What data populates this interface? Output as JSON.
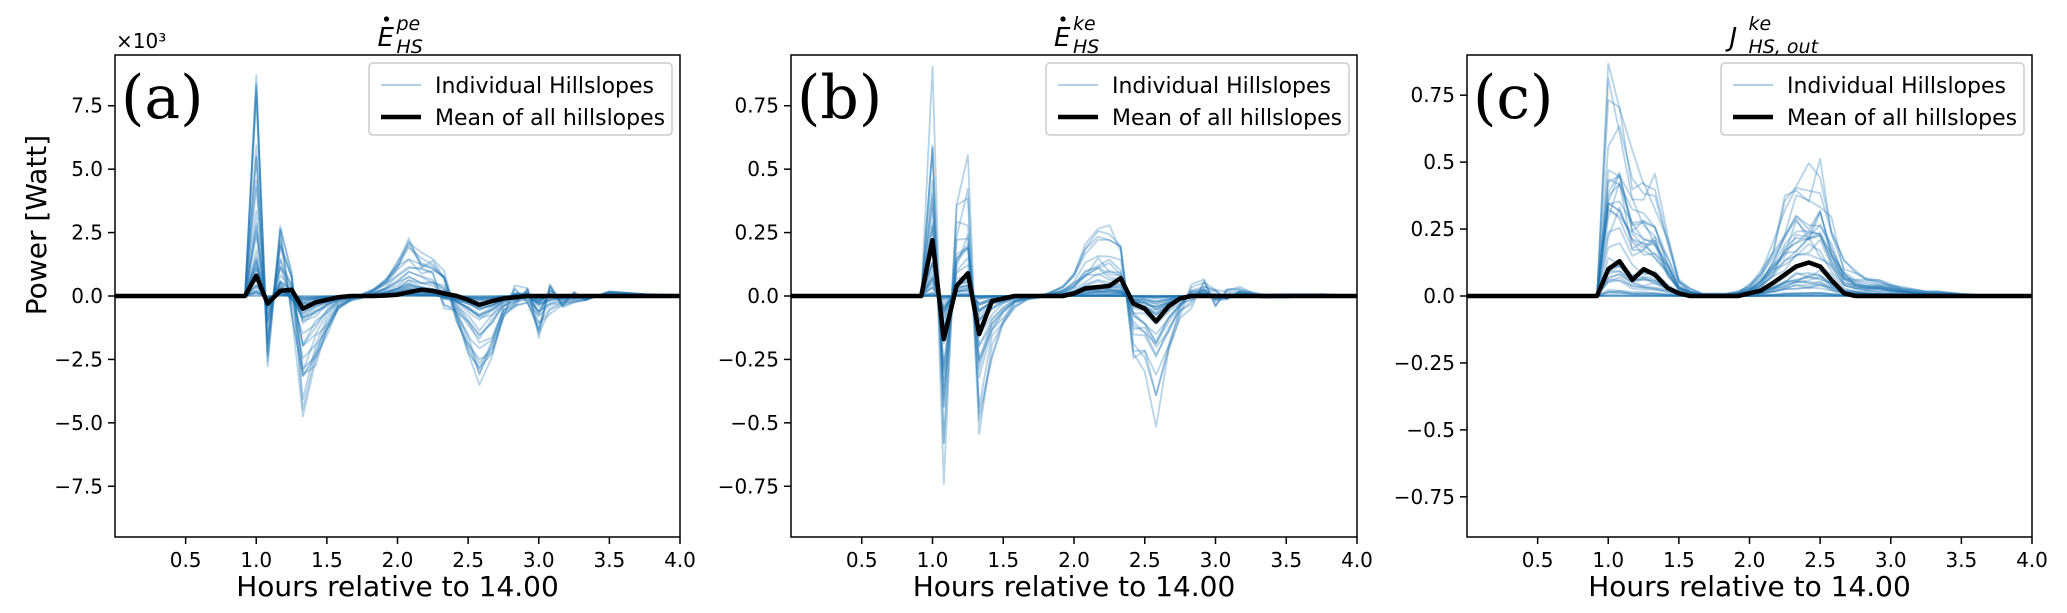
{
  "figure": {
    "ylabel": "Power [Watt]",
    "legend": {
      "individual_label": "Individual Hillslopes",
      "mean_label": "Mean of all hillslopes"
    },
    "colors": {
      "individual": "#1f77b4",
      "mean": "#000000",
      "axes": "#000000",
      "background": "#ffffff"
    }
  },
  "chart_data": [
    {
      "type": "line",
      "panel_label": "(a)",
      "title": "Ė",
      "title_sub": "HS",
      "title_sup": "pe",
      "xlabel": "Hours relative to 14.00",
      "ylabel": "Power [Watt]",
      "offset_text": "×10³",
      "xlim": [
        0.0,
        4.0
      ],
      "ylim": [
        -9.5,
        9.5
      ],
      "xticks": [
        0.5,
        1.0,
        1.5,
        2.0,
        2.5,
        3.0,
        3.5,
        4.0
      ],
      "yticks": [
        -7.5,
        -5.0,
        -2.5,
        0.0,
        2.5,
        5.0,
        7.5
      ],
      "legend_position": "top-right",
      "grid": false,
      "series": [
        {
          "name": "Mean of all hillslopes",
          "x": [
            0.0,
            0.25,
            0.5,
            0.75,
            0.92,
            1.0,
            1.08,
            1.17,
            1.25,
            1.33,
            1.42,
            1.5,
            1.58,
            1.67,
            1.75,
            1.83,
            1.92,
            2.0,
            2.08,
            2.17,
            2.25,
            2.33,
            2.42,
            2.5,
            2.58,
            2.67,
            2.75,
            2.83,
            2.92,
            3.0,
            3.17,
            3.33,
            3.5,
            3.75,
            4.0
          ],
          "y": [
            0,
            0,
            0,
            0,
            0,
            0.8,
            -0.3,
            0.2,
            0.25,
            -0.5,
            -0.25,
            -0.15,
            -0.05,
            0,
            0,
            0,
            0.02,
            0.05,
            0.15,
            0.25,
            0.2,
            0.1,
            0,
            -0.15,
            -0.35,
            -0.2,
            -0.1,
            -0.05,
            0,
            0,
            0,
            0,
            0,
            0,
            0
          ]
        }
      ],
      "individual": {
        "count_shown": 40,
        "envelope_x": [
          0.92,
          1.0,
          1.08,
          1.17,
          1.25,
          1.33,
          1.42,
          1.5,
          1.58,
          1.67,
          1.75,
          1.83,
          1.92,
          2.0,
          2.08,
          2.17,
          2.25,
          2.33,
          2.42,
          2.5,
          2.58,
          2.67,
          2.75,
          2.83,
          2.92,
          3.0,
          3.08,
          3.17,
          3.25,
          3.33,
          3.5,
          3.75,
          4.0
        ],
        "envelope_max": [
          0,
          9.5,
          0.5,
          3.2,
          1.2,
          0.3,
          0.2,
          0.1,
          0.05,
          0.05,
          0.1,
          0.3,
          0.8,
          1.5,
          2.5,
          1.8,
          1.5,
          1.1,
          0.3,
          0.3,
          0.2,
          0.2,
          0.1,
          0.5,
          0.4,
          0.7,
          0.6,
          0.3,
          0.2,
          0.1,
          0.2,
          0.1,
          0.05
        ],
        "envelope_min": [
          0,
          -0.6,
          -2.8,
          -1.0,
          -0.8,
          -5.0,
          -3.2,
          -1.8,
          -0.6,
          -0.2,
          -0.1,
          -0.05,
          -0.1,
          -0.1,
          -0.1,
          -0.2,
          -0.4,
          -0.8,
          -1.2,
          -2.5,
          -4.2,
          -2.8,
          -1.0,
          -0.5,
          -0.4,
          -1.8,
          -0.8,
          -0.5,
          -0.3,
          -0.2,
          -0.1,
          -0.05,
          -0.05
        ]
      }
    },
    {
      "type": "line",
      "panel_label": "(b)",
      "title": "Ė",
      "title_sub": "HS",
      "title_sup": "ke",
      "xlabel": "Hours relative to 14.00",
      "ylabel": "",
      "offset_text": "",
      "xlim": [
        0.0,
        4.0
      ],
      "ylim": [
        -0.95,
        0.95
      ],
      "xticks": [
        0.5,
        1.0,
        1.5,
        2.0,
        2.5,
        3.0,
        3.5,
        4.0
      ],
      "yticks": [
        -0.75,
        -0.5,
        -0.25,
        0.0,
        0.25,
        0.5,
        0.75
      ],
      "legend_position": "top-right",
      "grid": false,
      "series": [
        {
          "name": "Mean of all hillslopes",
          "x": [
            0.0,
            0.25,
            0.5,
            0.75,
            0.92,
            1.0,
            1.08,
            1.17,
            1.25,
            1.33,
            1.42,
            1.5,
            1.58,
            1.67,
            1.75,
            1.83,
            1.92,
            2.0,
            2.08,
            2.17,
            2.25,
            2.33,
            2.42,
            2.5,
            2.58,
            2.67,
            2.75,
            2.83,
            2.92,
            3.0,
            3.17,
            3.33,
            3.5,
            3.75,
            4.0
          ],
          "y": [
            0,
            0,
            0,
            0,
            0,
            0.22,
            -0.17,
            0.04,
            0.09,
            -0.15,
            -0.02,
            -0.01,
            0,
            0,
            0,
            0,
            0,
            0.01,
            0.03,
            0.035,
            0.04,
            0.07,
            -0.03,
            -0.05,
            -0.1,
            -0.04,
            -0.01,
            0,
            0,
            0,
            0,
            0,
            0,
            0,
            0
          ]
        }
      ],
      "individual": {
        "count_shown": 40,
        "envelope_x": [
          0.92,
          1.0,
          1.08,
          1.17,
          1.25,
          1.33,
          1.42,
          1.5,
          1.58,
          1.67,
          1.75,
          1.83,
          1.92,
          2.0,
          2.08,
          2.17,
          2.25,
          2.33,
          2.42,
          2.5,
          2.58,
          2.67,
          2.75,
          2.83,
          2.92,
          3.0,
          3.08,
          3.17,
          3.25,
          3.33,
          3.5,
          3.75,
          4.0
        ],
        "envelope_max": [
          0,
          0.95,
          0.3,
          0.4,
          0.56,
          0.2,
          0.1,
          0.05,
          0.02,
          0.01,
          0.01,
          0.02,
          0.05,
          0.12,
          0.25,
          0.33,
          0.3,
          0.26,
          0.1,
          0.08,
          0.04,
          0.02,
          0.02,
          0.05,
          0.08,
          0.05,
          0.03,
          0.04,
          0.02,
          0.01,
          0.01,
          0.01,
          0
        ],
        "envelope_min": [
          0,
          -0.08,
          -0.82,
          -0.25,
          -0.3,
          -0.68,
          -0.3,
          -0.15,
          -0.05,
          -0.02,
          -0.01,
          -0.01,
          -0.01,
          -0.01,
          -0.02,
          -0.02,
          -0.05,
          -0.1,
          -0.28,
          -0.35,
          -0.55,
          -0.3,
          -0.1,
          -0.05,
          -0.04,
          -0.05,
          -0.03,
          -0.02,
          -0.01,
          -0.01,
          -0.01,
          -0.01,
          0
        ]
      }
    },
    {
      "type": "line",
      "panel_label": "(c)",
      "title": "J",
      "title_sub": "HS, out",
      "title_sup": "ke",
      "xlabel": "Hours relative to 14.00",
      "ylabel": "",
      "offset_text": "",
      "xlim": [
        0.0,
        4.0
      ],
      "ylim": [
        -0.9,
        0.9
      ],
      "xticks": [
        0.5,
        1.0,
        1.5,
        2.0,
        2.5,
        3.0,
        3.5,
        4.0
      ],
      "yticks": [
        -0.75,
        -0.5,
        -0.25,
        0.0,
        0.25,
        0.5,
        0.75
      ],
      "legend_position": "top-right",
      "grid": false,
      "series": [
        {
          "name": "Mean of all hillslopes",
          "x": [
            0.0,
            0.25,
            0.5,
            0.75,
            0.92,
            1.0,
            1.08,
            1.17,
            1.25,
            1.33,
            1.42,
            1.5,
            1.58,
            1.67,
            1.75,
            1.83,
            1.92,
            2.0,
            2.08,
            2.17,
            2.25,
            2.33,
            2.42,
            2.5,
            2.58,
            2.67,
            2.75,
            2.83,
            2.92,
            3.0,
            3.17,
            3.33,
            3.5,
            3.75,
            4.0
          ],
          "y": [
            0,
            0,
            0,
            0,
            0,
            0.1,
            0.13,
            0.06,
            0.1,
            0.08,
            0.03,
            0.01,
            0,
            0,
            0,
            0,
            0,
            0.01,
            0.02,
            0.05,
            0.08,
            0.11,
            0.125,
            0.11,
            0.06,
            0.01,
            0,
            0,
            0,
            0,
            0,
            0,
            0,
            0,
            0
          ]
        }
      ],
      "individual": {
        "count_shown": 40,
        "envelope_x": [
          0.92,
          1.0,
          1.08,
          1.17,
          1.25,
          1.33,
          1.42,
          1.5,
          1.58,
          1.67,
          1.75,
          1.83,
          1.92,
          2.0,
          2.08,
          2.17,
          2.25,
          2.33,
          2.42,
          2.5,
          2.58,
          2.67,
          2.75,
          2.83,
          2.92,
          3.0,
          3.08,
          3.17,
          3.25,
          3.33,
          3.5,
          3.75,
          4.0
        ],
        "envelope_max": [
          0,
          0.88,
          0.9,
          0.55,
          0.52,
          0.47,
          0.25,
          0.08,
          0.03,
          0.01,
          0.01,
          0.01,
          0.02,
          0.05,
          0.12,
          0.25,
          0.4,
          0.5,
          0.55,
          0.55,
          0.35,
          0.15,
          0.1,
          0.08,
          0.07,
          0.06,
          0.04,
          0.03,
          0.02,
          0.02,
          0.01,
          0,
          0
        ],
        "envelope_min": [
          0,
          0,
          0,
          0,
          0,
          0,
          0,
          0,
          0,
          0,
          0,
          0,
          0,
          0,
          0,
          0,
          0,
          0,
          0,
          0,
          0,
          0,
          0,
          0,
          0,
          0,
          0,
          0,
          0,
          0,
          0,
          0,
          0
        ]
      }
    }
  ]
}
